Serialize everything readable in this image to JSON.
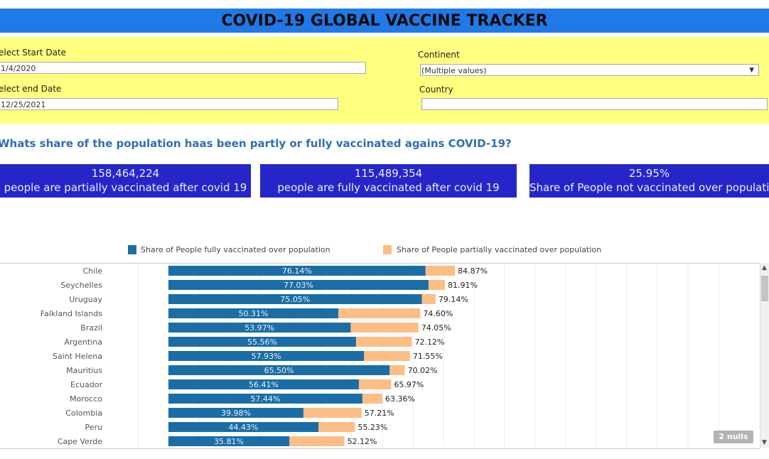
{
  "title": "COVID-19 GLOBAL VACCINE TRACKER",
  "filters": {
    "start_date_label": "elect Start Date",
    "start_date_value": "1/4/2020",
    "end_date_label": "elect end Date",
    "end_date_value": "12/25/2021",
    "continent_label": "Continent",
    "continent_value": "(Multiple values)",
    "country_label": "Country",
    "country_value": ""
  },
  "question": "Whats share of the population haas been partly or fully vaccinated agains COVID-19?",
  "kpis": [
    {
      "value": "158,464,224",
      "text": "people are partially vaccinated after covid 19"
    },
    {
      "value": "115,489,354",
      "text": "people are fully vaccinated after covid 19"
    },
    {
      "value": "25.95%",
      "text": "Share of People not vaccinated over population"
    }
  ],
  "nulls_badge": "2 nulls",
  "chart_data": {
    "type": "bar",
    "orientation": "horizontal",
    "stacked": true,
    "categories": [
      "Chile",
      "Seychelles",
      "Uruguay",
      "Falkland Islands",
      "Brazil",
      "Argentina",
      "Saint Helena",
      "Mauritius",
      "Ecuador",
      "Morocco",
      "Colombia",
      "Peru",
      "Cape Verde"
    ],
    "series": [
      {
        "name": "Share of People fully vaccinated over population",
        "color": "#1b6ea5",
        "values": [
          76.14,
          77.03,
          75.05,
          50.31,
          53.97,
          55.56,
          57.93,
          65.5,
          56.41,
          57.44,
          39.98,
          44.43,
          35.81
        ],
        "labels": [
          "76.14%",
          "77.03%",
          "75.05%",
          "50.31%",
          "53.97%",
          "55.56%",
          "57.93%",
          "65.50%",
          "56.41%",
          "57.44%",
          "39.98%",
          "44.43%",
          "35.81%"
        ]
      },
      {
        "name": "Share of People partially vaccinated over population",
        "color": "#fdbe85",
        "values": [
          84.87,
          81.91,
          79.14,
          74.6,
          74.05,
          72.12,
          71.55,
          70.02,
          65.97,
          63.36,
          57.21,
          55.23,
          52.12
        ],
        "labels": [
          "84.87%",
          "81.91%",
          "79.14%",
          "74.60%",
          "74.05%",
          "72.12%",
          "71.55%",
          "70.02%",
          "65.97%",
          "63.36%",
          "57.21%",
          "55.23%",
          "52.12%"
        ]
      }
    ],
    "legend_position": "top",
    "grid": true
  }
}
